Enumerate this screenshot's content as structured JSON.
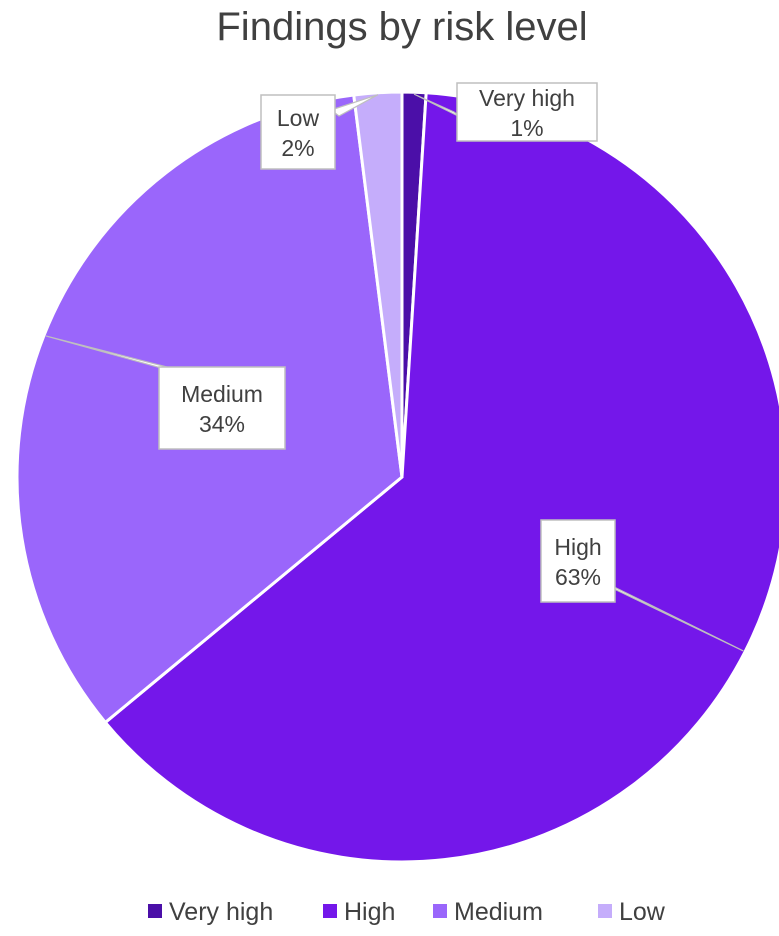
{
  "chart_data": {
    "type": "pie",
    "title": "Findings by risk level",
    "categories": [
      "Very high",
      "High",
      "Medium",
      "Low"
    ],
    "values": [
      1,
      63,
      34,
      2
    ],
    "colors": [
      "#4b0fa8",
      "#7417ea",
      "#9a66fb",
      "#c5adfb"
    ],
    "data_labels": [
      {
        "category": "Very high",
        "text": "1%"
      },
      {
        "category": "High",
        "text": "63%"
      },
      {
        "category": "Medium",
        "text": "34%"
      },
      {
        "category": "Low",
        "text": "2%"
      }
    ],
    "legend_position": "bottom"
  }
}
